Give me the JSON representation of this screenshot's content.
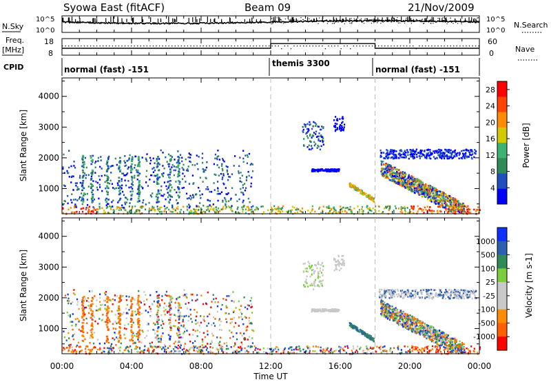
{
  "header": {
    "station": "Syowa East (fitACF)",
    "beam": "Beam 09",
    "date": "21/Nov/2009"
  },
  "strip_labels": {
    "nsky": "N.Sky",
    "nsky_ticks": [
      "10^5",
      "10^0"
    ],
    "nsearch": "N.Search",
    "nsearch_ticks": [
      "10^5",
      "10^0"
    ],
    "freq_line1": "Freq.",
    "freq_line2": "[MHz]",
    "freq_ticks": [
      "18",
      "8"
    ],
    "nave": "Nave",
    "nave_ticks": [
      "60",
      "0"
    ],
    "cpid": "CPID"
  },
  "cpid_segments": [
    {
      "label": "normal (fast) -151",
      "start_h": 0,
      "end_h": 12
    },
    {
      "label": "themis 3300",
      "start_h": 12,
      "end_h": 18
    },
    {
      "label": "normal (fast) -151",
      "start_h": 18,
      "end_h": 24
    }
  ],
  "x_axis": {
    "label": "Time UT",
    "ticks": [
      "00:00",
      "04:00",
      "08:00",
      "12:00",
      "16:00",
      "20:00",
      "00:00"
    ]
  },
  "colors": {
    "power": [
      "#0000ff",
      "#1f4fbf",
      "#2e8b57",
      "#3cb371",
      "#d4c800",
      "#ff8c00",
      "#ff4500",
      "#ff0000"
    ],
    "velocity": [
      "#1030ff",
      "#2d5fb0",
      "#2e8b57",
      "#7ccd3c",
      "#c8c8c8",
      "#c8c8c8",
      "#ff8c00",
      "#ff6000",
      "#ff0000"
    ]
  },
  "chart_data": [
    {
      "type": "line",
      "panel": "N.Sky / N.Search",
      "x_range": [
        0,
        24
      ],
      "y_scale": "log",
      "ylim": [
        "10^0",
        "10^5"
      ]
    },
    {
      "type": "line",
      "panel": "Freq. / Nave",
      "x_range": [
        0,
        24
      ],
      "freq_ylim": [
        8,
        18
      ],
      "nave_ylim": [
        0,
        60
      ],
      "nave_levels": [
        {
          "start_h": 0,
          "end_h": 12,
          "value": 25
        },
        {
          "start_h": 12,
          "end_h": 18,
          "value": 42
        },
        {
          "start_h": 18,
          "end_h": 24,
          "value": 25
        }
      ]
    },
    {
      "type": "heatmap",
      "panel": "Power",
      "xlabel": "Time UT",
      "ylabel": "Slant Range [km]",
      "x_range": [
        0,
        24
      ],
      "ylim": [
        180,
        4600
      ],
      "y_ticks": [
        "1000",
        "2000",
        "3000",
        "4000"
      ],
      "colorbar_label": "Power [dB]",
      "colorbar_ticks": [
        "4",
        "8",
        "12",
        "16",
        "20",
        "24",
        "28"
      ],
      "colorbar_range": [
        0,
        30
      ]
    },
    {
      "type": "heatmap",
      "panel": "Velocity",
      "xlabel": "Time UT",
      "ylabel": "Slant Range [km]",
      "x_range": [
        0,
        24
      ],
      "ylim": [
        180,
        4600
      ],
      "y_ticks": [
        "1000",
        "2000",
        "3000",
        "4000"
      ],
      "colorbar_label": "Velocity [m s-1]",
      "colorbar_ticks": [
        "1000",
        "500",
        "100",
        "25",
        "-25",
        "-100",
        "-500",
        "-1000"
      ]
    }
  ]
}
